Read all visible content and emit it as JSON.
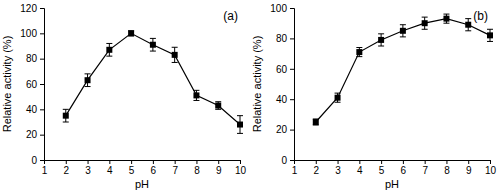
{
  "chart_data": [
    {
      "type": "line",
      "title": "(a)",
      "xlabel": "pH",
      "ylabel": "Relative activity (%)",
      "x": [
        2,
        3,
        4,
        5,
        6,
        7,
        8,
        9,
        10
      ],
      "values": [
        35,
        63,
        87,
        100,
        91,
        83,
        51,
        43,
        28
      ],
      "errors": [
        5,
        5,
        5,
        2,
        5,
        6,
        4,
        3,
        7
      ],
      "color": "#000000",
      "marker": "square",
      "line_style": "solid",
      "xlim": [
        1,
        10
      ],
      "xticks": [
        1,
        2,
        3,
        4,
        5,
        6,
        7,
        8,
        9,
        10
      ],
      "ylim": [
        0,
        120
      ],
      "yticks": [
        0,
        20,
        40,
        60,
        80,
        100,
        120
      ],
      "grid": false
    },
    {
      "type": "line",
      "title": "(b)",
      "xlabel": "pH",
      "ylabel": "Relative activity (%)",
      "x": [
        2,
        3,
        4,
        5,
        6,
        7,
        8,
        9,
        10
      ],
      "values": [
        25,
        41,
        71,
        79,
        85,
        90,
        93,
        89,
        82
      ],
      "errors": [
        2,
        3,
        3,
        4,
        4,
        4,
        3,
        4,
        4
      ],
      "color": "#000000",
      "marker": "square",
      "line_style": "solid",
      "xlim": [
        1,
        10
      ],
      "xticks": [
        1,
        2,
        3,
        4,
        5,
        6,
        7,
        8,
        9,
        10
      ],
      "ylim": [
        0,
        100
      ],
      "yticks": [
        0,
        20,
        40,
        60,
        80,
        100
      ],
      "grid": false
    }
  ]
}
